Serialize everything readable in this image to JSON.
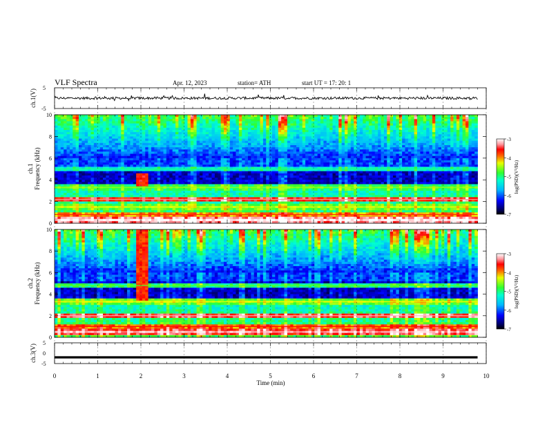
{
  "header": {
    "title": "VLF  Spectra",
    "date": "Apr. 12, 2023",
    "station": "station= ATH",
    "start_ut": "start  UT  =    17: 20: 1"
  },
  "chart_data": [
    {
      "type": "line",
      "panel": "ch1-waveform",
      "ylabel": "ch.1(V)",
      "ylim": [
        -5,
        5
      ],
      "yticks": [
        "5",
        "-5"
      ],
      "xlim": [
        0,
        10
      ],
      "baseline": 0,
      "color": "#000000"
    },
    {
      "type": "heatmap",
      "panel": "ch1-spectrogram",
      "ylabel": "ch.1\nFrequency  (kHz)",
      "ylabel_lines": [
        "ch.1",
        "Frequency  (kHz)"
      ],
      "ylim": [
        0,
        10
      ],
      "yticks": [
        "0",
        "2",
        "4",
        "6",
        "8",
        "10"
      ],
      "xlim": [
        0,
        10
      ],
      "data_extent_min": [
        0,
        9.8
      ],
      "colorbar": {
        "label": "log(PSD)(V²/Hz)",
        "range": [
          -7,
          -3
        ],
        "ticks": [
          "-3",
          "-4",
          "-5",
          "-6",
          "-7"
        ]
      },
      "bands_khz": [
        {
          "f": 0.3,
          "level": -3.2
        },
        {
          "f": 0.8,
          "level": -4.0
        },
        {
          "f": 1.5,
          "level": -4.6
        },
        {
          "f": 2.2,
          "level": -3.6
        },
        {
          "f": 3.3,
          "level": -4.8
        },
        {
          "f": 5.0,
          "level": -5.3
        }
      ],
      "burst": {
        "t_min": [
          1.9,
          2.2
        ],
        "f_khz": [
          3.4,
          4.6
        ],
        "level": -3.6
      }
    },
    {
      "type": "heatmap",
      "panel": "ch2-spectrogram",
      "ylabel": "ch.2\nFrequency  (kHz)",
      "ylabel_lines": [
        "ch.2",
        "Frequency  (kHz)"
      ],
      "ylim": [
        0,
        10
      ],
      "yticks": [
        "0",
        "2",
        "4",
        "6",
        "8",
        "10"
      ],
      "xlim": [
        0,
        10
      ],
      "data_extent_min": [
        0,
        9.8
      ],
      "colorbar": {
        "label": "log(PSD)(V²/Hz)",
        "range": [
          -7,
          -3
        ],
        "ticks": [
          "-3",
          "-4",
          "-5",
          "-6",
          "-7"
        ]
      },
      "bands_khz": [
        {
          "f": 0.5,
          "level": -3.4
        },
        {
          "f": 1.0,
          "level": -3.9
        },
        {
          "f": 2.0,
          "level": -3.5
        },
        {
          "f": 3.3,
          "level": -4.6
        },
        {
          "f": 4.8,
          "level": -5.0
        }
      ],
      "burst": {
        "t_min": [
          1.9,
          2.2
        ],
        "f_khz": [
          3.4,
          10
        ],
        "level": -3.7
      }
    },
    {
      "type": "line",
      "panel": "ch3-waveform",
      "ylabel": "ch.3(V)",
      "ylim": [
        -5,
        5
      ],
      "yticks": [
        "5",
        "0",
        "-5"
      ],
      "xlim": [
        0,
        10
      ],
      "xlabel": "Time  (min)",
      "xticks": [
        "0",
        "1",
        "2",
        "3",
        "4",
        "5",
        "6",
        "7",
        "8",
        "9",
        "10"
      ],
      "baseline": -2,
      "color": "#000000"
    }
  ]
}
